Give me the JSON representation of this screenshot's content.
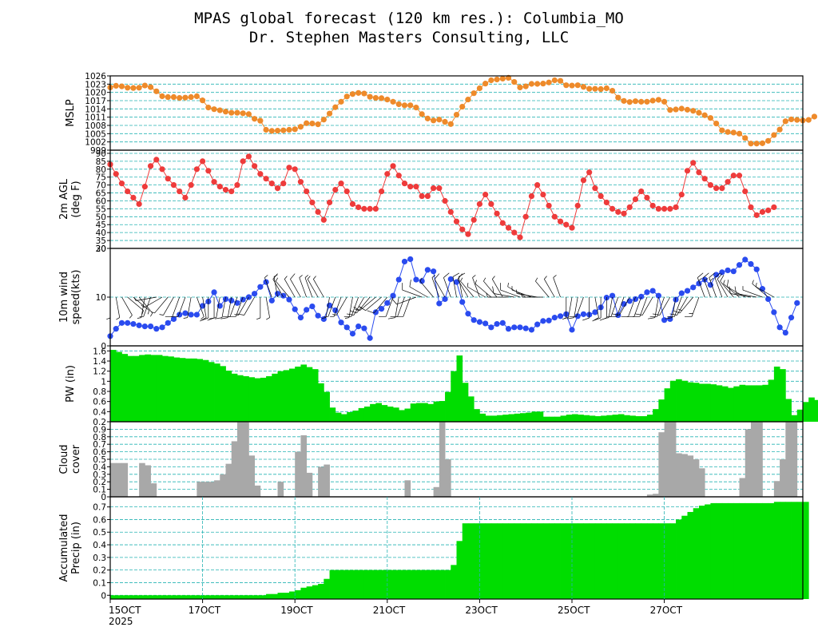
{
  "title": "MPAS global forecast (120 km res.): Columbia_MO",
  "subtitle": "Dr. Stephen Masters Consulting, LLC",
  "colors": {
    "mslp": "#ee8a2a",
    "temp": "#ee3b3b",
    "wind": "#2a4bef",
    "pw": "#00dd00",
    "cloud": "#a8a8a8",
    "precip": "#00dd00",
    "grid": "#26b3b3"
  },
  "chart_data": [
    {
      "type": "line",
      "ylabel": "MSLP",
      "ylim": [
        999,
        1026
      ],
      "yticks": [
        999,
        1002,
        1005,
        1008,
        1011,
        1014,
        1017,
        1020,
        1023,
        1026
      ],
      "x_start_day": 15,
      "step_hours": 3,
      "values": [
        1021.8,
        1022.4,
        1022.2,
        1021.7,
        1021.6,
        1021.7,
        1022.5,
        1021.9,
        1020.4,
        1018.6,
        1018.3,
        1018.3,
        1018.0,
        1018.1,
        1018.3,
        1018.6,
        1017.1,
        1014.5,
        1013.9,
        1013.5,
        1013.0,
        1012.6,
        1012.6,
        1012.4,
        1012.1,
        1010.4,
        1009.7,
        1006.4,
        1006.0,
        1006.1,
        1006.2,
        1006.4,
        1006.6,
        1007.5,
        1008.8,
        1008.7,
        1008.4,
        1010.1,
        1012.3,
        1014.6,
        1016.6,
        1018.5,
        1019.4,
        1019.8,
        1019.6,
        1018.4,
        1018.0,
        1017.9,
        1017.4,
        1016.6,
        1015.7,
        1015.3,
        1015.3,
        1014.5,
        1012.1,
        1010.5,
        1009.8,
        1010.1,
        1009.3,
        1008.5,
        1011.9,
        1014.8,
        1017.4,
        1019.7,
        1021.5,
        1023.2,
        1024.4,
        1024.7,
        1025.0,
        1025.3,
        1023.8,
        1021.8,
        1022.2,
        1023.1,
        1023.1,
        1023.2,
        1023.6,
        1024.4,
        1024.2,
        1022.6,
        1022.5,
        1022.6,
        1022.0,
        1021.3,
        1021.3,
        1021.2,
        1021.5,
        1020.6,
        1018.1,
        1016.9,
        1016.5,
        1016.8,
        1016.6,
        1016.6,
        1017.0,
        1017.3,
        1016.6,
        1013.6,
        1013.8,
        1014.1,
        1013.7,
        1013.3,
        1012.6,
        1011.7,
        1010.7,
        1008.7,
        1006.2,
        1005.6,
        1005.4,
        1005.0,
        1003.4,
        1001.4,
        1001.4,
        1001.5,
        1002.4,
        1004.5,
        1006.5,
        1009.5,
        1010.2,
        1010.0,
        1009.8,
        1010.0,
        1011.2
      ]
    },
    {
      "type": "line",
      "ylabel": "2m AGL (deg F)",
      "ylim": [
        30,
        92
      ],
      "yticks": [
        30,
        35,
        40,
        45,
        50,
        55,
        60,
        65,
        70,
        75,
        80,
        85,
        90
      ],
      "values": [
        83,
        77,
        71,
        66,
        62,
        58,
        69,
        82,
        86,
        80,
        74,
        70,
        66,
        62,
        70,
        80,
        85,
        79,
        72,
        69,
        67,
        66,
        70,
        85,
        88,
        82,
        77,
        74,
        71,
        68,
        71,
        81,
        80,
        72,
        66,
        59,
        53,
        48,
        59,
        67,
        71,
        66,
        58,
        56,
        55,
        55,
        55,
        66,
        77,
        82,
        76,
        71,
        69,
        69,
        63,
        63,
        68,
        68,
        60,
        53,
        47,
        42,
        39,
        48,
        58,
        64,
        58,
        52,
        46,
        43,
        40,
        37,
        50,
        63,
        70,
        64,
        57,
        50,
        47,
        45,
        43,
        57,
        73,
        78,
        68,
        63,
        59,
        55,
        53,
        52,
        56,
        61,
        66,
        62,
        57,
        55,
        55,
        55,
        56,
        64,
        79,
        84,
        78,
        74,
        70,
        68,
        68,
        72,
        76,
        76,
        66,
        56,
        51,
        53,
        54,
        56
      ]
    },
    {
      "type": "line",
      "ylabel": "10m wind speed(kts)",
      "ylim": [
        0,
        20
      ],
      "yticks": [
        0,
        10,
        20
      ],
      "values": [
        2,
        3.5,
        4.7,
        4.7,
        4.5,
        4.2,
        4,
        4,
        3.5,
        3.8,
        4.7,
        5.5,
        6.4,
        6.7,
        6.4,
        6.4,
        8.2,
        9.1,
        11,
        8.2,
        9.6,
        9.3,
        8.8,
        9.5,
        10,
        10.7,
        12.1,
        13.1,
        9.3,
        10.7,
        10.3,
        9.5,
        7.5,
        5.8,
        7.4,
        8.1,
        6.2,
        5.5,
        8.3,
        7.3,
        4.8,
        3.8,
        2.5,
        4,
        3.6,
        1.6,
        6.9,
        7.6,
        8.8,
        10.3,
        13.6,
        17.3,
        17.8,
        13.6,
        13.3,
        15.6,
        15.3,
        8.7,
        9.6,
        13.7,
        13.1,
        9,
        6.6,
        5.3,
        4.9,
        4.6,
        3.8,
        4.5,
        4.7,
        3.5,
        3.8,
        3.8,
        3.6,
        3.3,
        4.4,
        5.1,
        5.2,
        5.8,
        6.1,
        6.5,
        3.3,
        6.1,
        6.5,
        6.4,
        6.9,
        7.9,
        9.9,
        10.3,
        6.3,
        8.6,
        9.2,
        9.6,
        10.1,
        11,
        11.3,
        10.3,
        5.3,
        5.5,
        9.5,
        10.8,
        11.3,
        12,
        12.8,
        13.6,
        12.5,
        14.6,
        15.1,
        15.5,
        15.3,
        16.6,
        17.7,
        16.8,
        15.7,
        11.7,
        9.6,
        6.9,
        3.8,
        2.7,
        5.8,
        8.8
      ]
    },
    {
      "type": "bar",
      "ylabel": "PW (in)",
      "ylim": [
        0.2,
        1.7
      ],
      "yticks": [
        0.2,
        0.4,
        0.6,
        0.8,
        1,
        1.2,
        1.4,
        1.6
      ],
      "values": [
        1.62,
        1.58,
        1.54,
        1.5,
        1.5,
        1.52,
        1.53,
        1.52,
        1.52,
        1.5,
        1.49,
        1.47,
        1.46,
        1.45,
        1.45,
        1.44,
        1.42,
        1.38,
        1.35,
        1.3,
        1.21,
        1.15,
        1.12,
        1.1,
        1.08,
        1.06,
        1.07,
        1.1,
        1.15,
        1.2,
        1.22,
        1.25,
        1.29,
        1.33,
        1.28,
        1.24,
        0.96,
        0.79,
        0.48,
        0.38,
        0.35,
        0.39,
        0.42,
        0.47,
        0.5,
        0.55,
        0.57,
        0.53,
        0.5,
        0.48,
        0.43,
        0.46,
        0.56,
        0.57,
        0.57,
        0.55,
        0.6,
        0.61,
        0.79,
        1.2,
        1.51,
        0.97,
        0.7,
        0.45,
        0.36,
        0.32,
        0.32,
        0.33,
        0.34,
        0.35,
        0.36,
        0.37,
        0.38,
        0.4,
        0.4,
        0.3,
        0.3,
        0.3,
        0.32,
        0.34,
        0.35,
        0.34,
        0.33,
        0.32,
        0.31,
        0.32,
        0.33,
        0.34,
        0.35,
        0.33,
        0.32,
        0.31,
        0.31,
        0.34,
        0.45,
        0.64,
        0.86,
        1.01,
        1.04,
        1.01,
        0.98,
        0.97,
        0.95,
        0.95,
        0.94,
        0.92,
        0.9,
        0.87,
        0.9,
        0.93,
        0.92,
        0.92,
        0.92,
        0.93,
        1.03,
        1.29,
        1.24,
        0.65,
        0.33,
        0.44,
        0.59,
        0.68,
        0.63
      ]
    },
    {
      "type": "bar",
      "ylabel": "Cloud cover",
      "ylim": [
        0,
        1
      ],
      "yticks": [
        0,
        0.1,
        0.2,
        0.3,
        0.4,
        0.5,
        0.6,
        0.7,
        0.8,
        0.9
      ],
      "values": [
        0.45,
        0.45,
        0.45,
        0,
        0,
        0.45,
        0.42,
        0.18,
        0,
        0,
        0,
        0,
        0,
        0,
        0,
        0.2,
        0.2,
        0.2,
        0.22,
        0.3,
        0.44,
        0.74,
        1,
        1,
        0.55,
        0.15,
        0,
        0,
        0,
        0.2,
        0,
        0,
        0.6,
        0.82,
        0.32,
        0,
        0.4,
        0.43,
        0,
        0,
        0,
        0,
        0,
        0,
        0,
        0,
        0,
        0,
        0,
        0,
        0,
        0.22,
        0,
        0,
        0,
        0,
        0.13,
        1,
        0.5,
        0,
        0,
        0,
        0,
        0,
        0,
        0,
        0,
        0,
        0,
        0,
        0,
        0,
        0,
        0,
        0,
        0,
        0,
        0,
        0,
        0,
        0,
        0,
        0,
        0,
        0,
        0,
        0,
        0,
        0,
        0,
        0,
        0,
        0,
        0.03,
        0.04,
        0.86,
        1,
        1,
        0.58,
        0.57,
        0.55,
        0.5,
        0.38,
        0,
        0,
        0,
        0,
        0,
        0,
        0.25,
        0.9,
        1,
        1,
        0,
        0,
        0.21,
        0.5,
        1,
        1
      ]
    },
    {
      "type": "area",
      "ylabel": "Accumulated Precip (in)",
      "ylim": [
        -0.03,
        0.78
      ],
      "yticks": [
        0,
        0.1,
        0.2,
        0.3,
        0.4,
        0.5,
        0.6,
        0.7
      ],
      "values": [
        0,
        0,
        0,
        0,
        0,
        0,
        0,
        0,
        0,
        0,
        0,
        0,
        0,
        0,
        0,
        0,
        0,
        0,
        0,
        0,
        0,
        0,
        0,
        0,
        0,
        0,
        0,
        0.01,
        0.01,
        0.02,
        0.02,
        0.03,
        0.04,
        0.06,
        0.07,
        0.08,
        0.09,
        0.13,
        0.2,
        0.2,
        0.2,
        0.2,
        0.2,
        0.2,
        0.2,
        0.2,
        0.2,
        0.2,
        0.2,
        0.2,
        0.2,
        0.2,
        0.2,
        0.2,
        0.2,
        0.2,
        0.2,
        0.2,
        0.2,
        0.24,
        0.43,
        0.57,
        0.57,
        0.57,
        0.57,
        0.57,
        0.57,
        0.57,
        0.57,
        0.57,
        0.57,
        0.57,
        0.57,
        0.57,
        0.57,
        0.57,
        0.57,
        0.57,
        0.57,
        0.57,
        0.57,
        0.57,
        0.57,
        0.57,
        0.57,
        0.57,
        0.57,
        0.57,
        0.57,
        0.57,
        0.57,
        0.57,
        0.57,
        0.57,
        0.57,
        0.57,
        0.57,
        0.57,
        0.6,
        0.63,
        0.66,
        0.69,
        0.71,
        0.72,
        0.73,
        0.73,
        0.73,
        0.73,
        0.73,
        0.73,
        0.73,
        0.73,
        0.73,
        0.73,
        0.73,
        0.74,
        0.74,
        0.74,
        0.74,
        0.74,
        0.74
      ]
    }
  ],
  "x_ticks": [
    {
      "label": "15OCT",
      "day": 15
    },
    {
      "label": "17OCT",
      "day": 17
    },
    {
      "label": "19OCT",
      "day": 19
    },
    {
      "label": "21OCT",
      "day": 21
    },
    {
      "label": "23OCT",
      "day": 23
    },
    {
      "label": "25OCT",
      "day": 25
    },
    {
      "label": "27OCT",
      "day": 27
    }
  ],
  "x_year": "2025",
  "wind_barbs": [
    [
      180,
      8
    ],
    [
      170,
      9
    ],
    [
      150,
      7
    ],
    [
      130,
      8
    ],
    [
      130,
      8
    ],
    [
      140,
      6
    ],
    [
      190,
      7
    ],
    [
      200,
      6
    ],
    [
      260,
      7
    ],
    [
      240,
      8
    ],
    [
      220,
      9
    ],
    [
      210,
      8
    ],
    [
      200,
      10
    ],
    [
      200,
      11
    ],
    [
      190,
      9
    ],
    [
      160,
      8
    ],
    [
      170,
      10
    ],
    [
      180,
      12
    ],
    [
      180,
      12
    ],
    [
      190,
      14
    ],
    [
      190,
      12
    ],
    [
      190,
      13
    ],
    [
      200,
      14
    ],
    [
      200,
      11
    ],
    [
      210,
      9
    ],
    [
      210,
      12
    ],
    [
      180,
      8
    ],
    [
      170,
      9
    ],
    [
      340,
      7
    ],
    [
      350,
      8
    ],
    [
      330,
      10
    ],
    [
      320,
      9
    ],
    [
      330,
      8
    ],
    [
      330,
      10
    ],
    [
      340,
      6
    ],
    [
      340,
      7
    ],
    [
      330,
      6
    ],
    [
      330,
      7
    ],
    [
      190,
      8
    ],
    [
      200,
      9
    ],
    [
      200,
      8
    ],
    [
      210,
      9
    ],
    [
      190,
      9
    ],
    [
      200,
      10
    ],
    [
      210,
      12
    ],
    [
      220,
      16
    ],
    [
      230,
      15
    ],
    [
      230,
      12
    ],
    [
      220,
      11
    ],
    [
      200,
      10
    ],
    [
      190,
      12
    ],
    [
      200,
      13
    ],
    [
      200,
      13
    ],
    [
      250,
      11
    ],
    [
      290,
      12
    ],
    [
      300,
      12
    ],
    [
      320,
      9
    ],
    [
      340,
      9
    ],
    [
      330,
      10
    ],
    [
      340,
      12
    ],
    [
      350,
      12
    ],
    [
      350,
      14
    ],
    [
      330,
      12
    ],
    [
      320,
      9
    ],
    [
      340,
      8
    ],
    [
      300,
      9
    ],
    [
      310,
      6
    ],
    [
      320,
      8
    ],
    [
      330,
      7
    ],
    [
      270,
      9
    ],
    [
      280,
      10
    ],
    [
      290,
      10
    ],
    [
      300,
      9
    ],
    [
      290,
      8
    ],
    [
      280,
      7
    ],
    [
      270,
      8
    ],
    [
      320,
      6
    ],
    [
      330,
      6
    ],
    [
      340,
      7
    ],
    [
      180,
      6
    ],
    [
      190,
      7
    ],
    [
      190,
      10
    ],
    [
      200,
      10
    ],
    [
      180,
      10
    ],
    [
      170,
      10
    ],
    [
      180,
      11
    ],
    [
      180,
      11
    ],
    [
      190,
      9
    ],
    [
      200,
      9
    ],
    [
      200,
      10
    ],
    [
      210,
      11
    ],
    [
      200,
      13
    ],
    [
      200,
      13
    ],
    [
      200,
      14
    ],
    [
      210,
      11
    ],
    [
      190,
      12
    ],
    [
      200,
      13
    ],
    [
      210,
      11
    ],
    [
      190,
      12
    ],
    [
      200,
      12
    ],
    [
      210,
      13
    ],
    [
      220,
      15
    ],
    [
      200,
      15
    ],
    [
      340,
      15
    ],
    [
      340,
      16
    ],
    [
      340,
      16
    ],
    [
      340,
      14
    ],
    [
      330,
      12
    ],
    [
      320,
      10
    ],
    [
      310,
      8
    ],
    [
      300,
      10
    ],
    [
      280,
      11
    ],
    [
      280,
      10
    ],
    [
      290,
      8
    ],
    [
      310,
      6
    ],
    [
      300,
      7
    ]
  ]
}
